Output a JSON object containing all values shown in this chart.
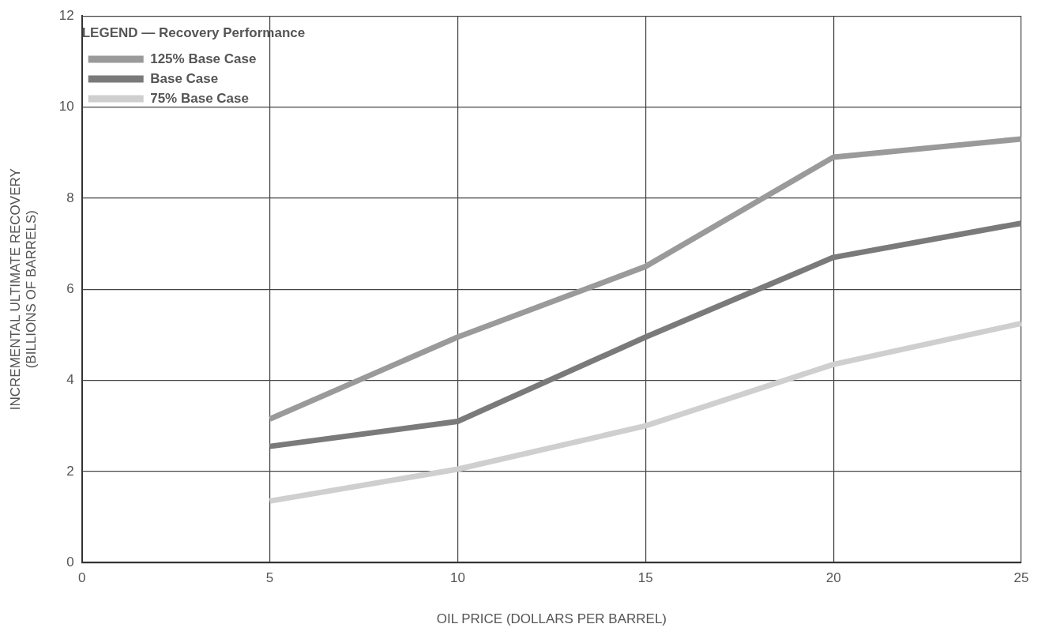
{
  "chart_data": {
    "type": "line",
    "x": [
      5,
      10,
      15,
      20,
      25
    ],
    "xlabel": "OIL PRICE (DOLLARS PER BARREL)",
    "ylabel": "INCREMENTAL ULTIMATE RECOVERY\n(BILLIONS OF BARRELS)",
    "legend_title": "LEGEND — Recovery Performance",
    "series": [
      {
        "name": "125% Base Case",
        "color": "#9a9a9a",
        "values": [
          3.15,
          4.95,
          6.5,
          8.9,
          9.3
        ]
      },
      {
        "name": "Base Case",
        "color": "#7a7a7a",
        "values": [
          2.55,
          3.1,
          4.95,
          6.7,
          7.45
        ]
      },
      {
        "name": "75% Base Case",
        "color": "#cfcfcf",
        "values": [
          1.35,
          2.05,
          3.0,
          4.35,
          5.25
        ]
      }
    ],
    "xlim": [
      0,
      25
    ],
    "xticks": [
      0,
      5,
      10,
      15,
      20,
      25
    ],
    "ylim": [
      0,
      12
    ],
    "yticks": [
      0,
      2,
      4,
      6,
      8,
      10,
      12
    ],
    "grid": true,
    "legend": "top left",
    "marker": "none",
    "line_style": "solid"
  }
}
